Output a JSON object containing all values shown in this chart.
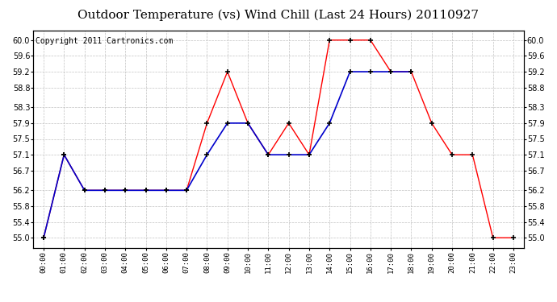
{
  "title": "Outdoor Temperature (vs) Wind Chill (Last 24 Hours) 20110927",
  "copyright": "Copyright 2011 Cartronics.com",
  "x_labels": [
    "00:00",
    "01:00",
    "02:00",
    "03:00",
    "04:00",
    "05:00",
    "06:00",
    "07:00",
    "08:00",
    "09:00",
    "10:00",
    "11:00",
    "12:00",
    "13:00",
    "14:00",
    "15:00",
    "16:00",
    "17:00",
    "18:00",
    "19:00",
    "20:00",
    "21:00",
    "22:00",
    "23:00"
  ],
  "red_data": [
    55.0,
    57.1,
    56.2,
    56.2,
    56.2,
    56.2,
    56.2,
    56.2,
    57.9,
    59.2,
    57.9,
    57.1,
    57.9,
    57.1,
    60.0,
    60.0,
    60.0,
    59.2,
    59.2,
    57.9,
    57.1,
    57.1,
    55.0,
    55.0
  ],
  "blue_data": [
    55.0,
    57.1,
    56.2,
    56.2,
    56.2,
    56.2,
    56.2,
    56.2,
    57.1,
    57.9,
    57.9,
    57.1,
    57.1,
    57.1,
    57.9,
    59.2,
    59.2,
    59.2,
    59.2,
    null,
    null,
    null,
    null,
    null
  ],
  "ylim": [
    54.75,
    60.25
  ],
  "yticks": [
    55.0,
    55.4,
    55.8,
    56.2,
    56.7,
    57.1,
    57.5,
    57.9,
    58.3,
    58.8,
    59.2,
    59.6,
    60.0
  ],
  "red_color": "#ff0000",
  "blue_color": "#0000cc",
  "bg_color": "#ffffff",
  "grid_color": "#bbbbbb",
  "title_fontsize": 11,
  "copyright_fontsize": 7
}
